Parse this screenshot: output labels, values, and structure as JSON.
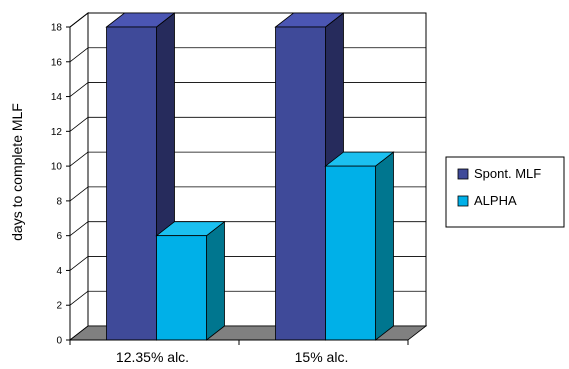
{
  "chart_data": {
    "type": "bar",
    "categories": [
      "12.35% alc.",
      "15% alc."
    ],
    "series": [
      {
        "name": "Spont. MLF",
        "values": [
          18,
          18
        ],
        "color": "#3f4a99",
        "side_color": "#262b5c",
        "top_color": "#4b56b3"
      },
      {
        "name": "ALPHA",
        "values": [
          6,
          10
        ],
        "color": "#00b0e8",
        "side_color": "#00768f",
        "top_color": "#1bc0f0"
      }
    ],
    "ylabel": "days to complete MLF",
    "xlabel": "",
    "ylim": [
      0,
      18
    ],
    "yticks": [
      0,
      2,
      4,
      6,
      8,
      10,
      12,
      14,
      16,
      18
    ],
    "grid": true,
    "legend_position": "right"
  }
}
